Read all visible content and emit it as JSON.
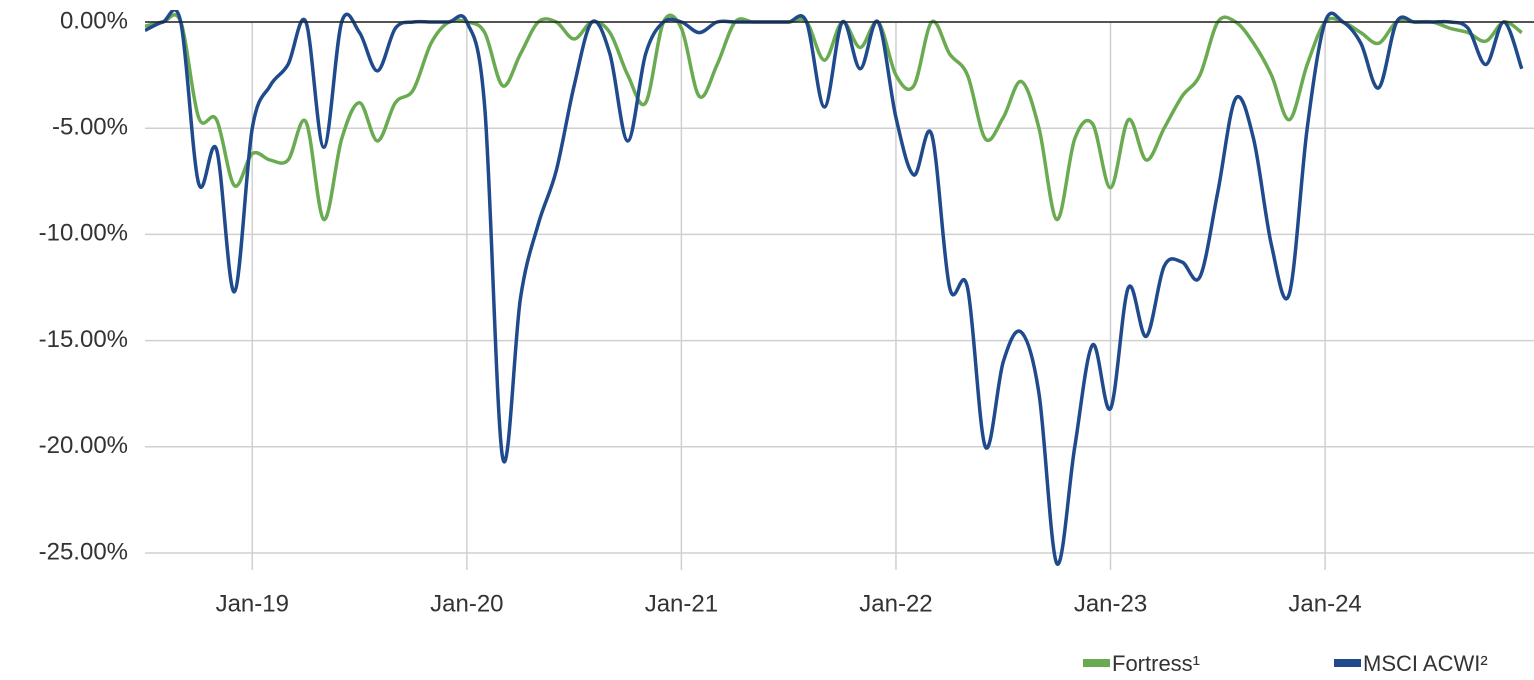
{
  "chart_data": {
    "type": "line",
    "categories": [
      null,
      null,
      null,
      null,
      null,
      null,
      "Jan-19",
      null,
      null,
      null,
      null,
      null,
      null,
      null,
      null,
      null,
      null,
      null,
      "Jan-20",
      null,
      null,
      null,
      null,
      null,
      null,
      null,
      null,
      null,
      null,
      null,
      "Jan-21",
      null,
      null,
      null,
      null,
      null,
      null,
      null,
      null,
      null,
      null,
      null,
      "Jan-22",
      null,
      null,
      null,
      null,
      null,
      null,
      null,
      null,
      null,
      null,
      null,
      "Jan-23",
      null,
      null,
      null,
      null,
      null,
      null,
      null,
      null,
      null,
      null,
      null,
      "Jan-24",
      null,
      null,
      null,
      null,
      null,
      null,
      null,
      null,
      null,
      null,
      null
    ],
    "series": [
      {
        "name": "Fortress¹",
        "color": "#6aab52",
        "values": [
          -0.2,
          0,
          0,
          -4.5,
          -4.6,
          -7.7,
          -6.2,
          -6.5,
          -6.5,
          -4.7,
          -9.3,
          -5.5,
          -3.8,
          -5.6,
          -3.8,
          -3.2,
          -1,
          0,
          0,
          -0.5,
          -3,
          -1.5,
          0,
          0,
          -0.8,
          0,
          -0.5,
          -2.5,
          -3.8,
          0,
          -0.3,
          -3.5,
          -2,
          0,
          0,
          0,
          0,
          0,
          -1.8,
          0,
          -1.2,
          0,
          -2.5,
          -3,
          0,
          -1.5,
          -2.5,
          -5.5,
          -4.5,
          -2.8,
          -5,
          -9.3,
          -5.5,
          -4.8,
          -7.8,
          -4.6,
          -6.5,
          -5,
          -3.5,
          -2.5,
          0,
          0,
          -1,
          -2.5,
          -4.6,
          -2,
          0,
          0,
          -0.5,
          -1,
          0,
          0,
          0,
          -0.3,
          -0.5,
          -0.9,
          0,
          -0.5
        ]
      },
      {
        "name": "MSCI ACWI²",
        "color": "#1f4a8c",
        "values": [
          -0.4,
          0,
          0,
          -7.6,
          -6,
          -12.7,
          -5,
          -3,
          -2,
          0,
          -5.9,
          0,
          -0.5,
          -2.3,
          -0.3,
          0,
          0,
          0,
          0,
          -4,
          -20.5,
          -13,
          -9.5,
          -7,
          -3,
          0,
          -1.5,
          -5.6,
          -1.5,
          0,
          0,
          -0.5,
          0,
          0,
          0,
          0,
          0,
          0,
          -4,
          0,
          -2.2,
          0,
          -4.5,
          -7.2,
          -5.3,
          -12.5,
          -12.5,
          -20,
          -16,
          -14.6,
          -17.5,
          -25.5,
          -20,
          -15.2,
          -18.2,
          -12.5,
          -14.8,
          -11.5,
          -11.3,
          -12,
          -8,
          -3.6,
          -5.5,
          -10.5,
          -12.8,
          -5,
          0,
          0,
          -1,
          -3.1,
          0,
          0,
          0,
          0,
          -0.3,
          -2,
          0,
          -2.2
        ]
      }
    ],
    "ylim": [
      -25.8,
      0
    ],
    "yticks": [
      {
        "value": 0,
        "label": "0.00%"
      },
      {
        "value": -5,
        "label": "-5.00%"
      },
      {
        "value": -10,
        "label": "-10.00%"
      },
      {
        "value": -15,
        "label": "-15.00%"
      },
      {
        "value": -20,
        "label": "-20.00%"
      },
      {
        "value": -25,
        "label": "-25.00%"
      }
    ],
    "grid": true
  }
}
